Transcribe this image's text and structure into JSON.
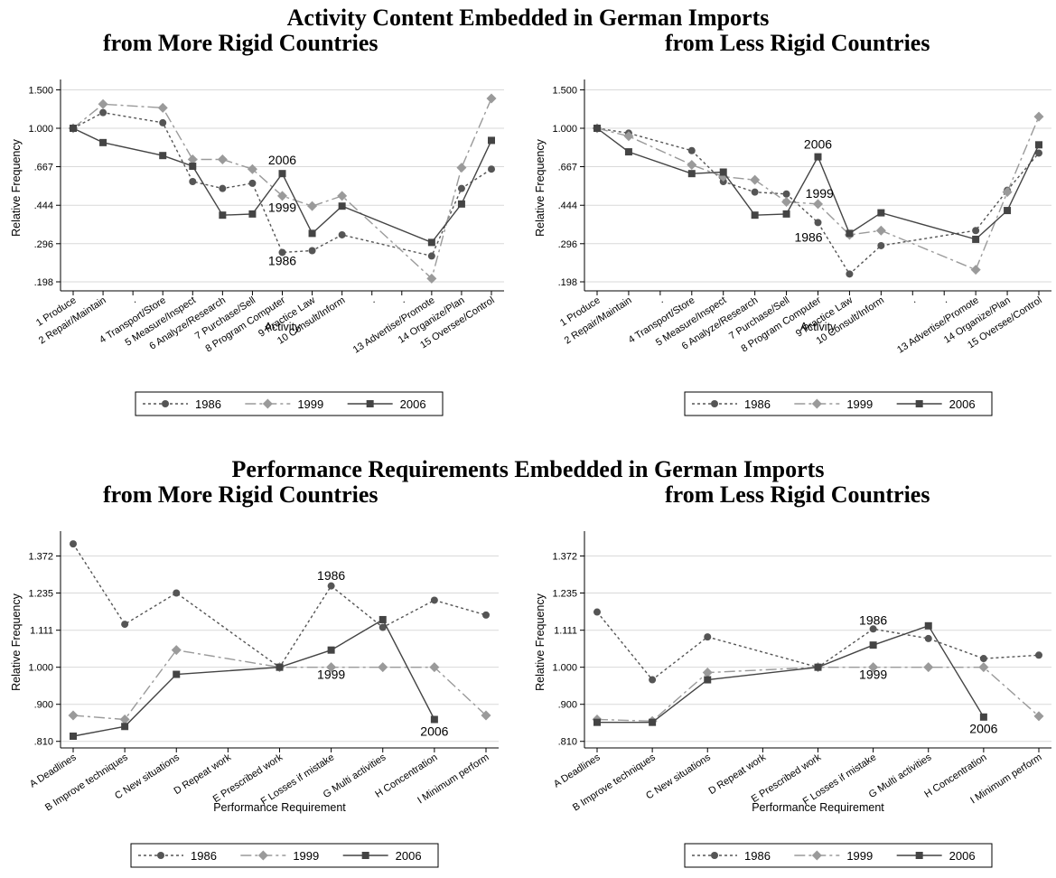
{
  "titles": {
    "top": "Activity Content Embedded in German Imports",
    "bottom": "Performance Requirements Embedded in German Imports",
    "sub_more": "from More Rigid Countries",
    "sub_less": "from Less Rigid Countries"
  },
  "colors": {
    "axis": "#000000",
    "grid": "#d9d9d9",
    "s1986": "#555555",
    "s1999": "#9a9a9a",
    "s2006": "#444444"
  },
  "chart_data": [
    {
      "type": "line",
      "ylabel": "Relative Frequency",
      "xlabel": "Activity",
      "y_scale": "log",
      "y_ticks": [
        0.198,
        0.296,
        0.444,
        0.667,
        1.0,
        1.5
      ],
      "y_tick_labels": [
        ".198",
        ".296",
        ".444",
        ".667",
        "1.000",
        "1.500"
      ],
      "ylim": [
        0.18,
        1.58
      ],
      "x": [
        1,
        2,
        3,
        4,
        5,
        6,
        7,
        8,
        9,
        10,
        11,
        12,
        13,
        14,
        15
      ],
      "x_tick_labels": [
        "1 Produce",
        "2 Repair/Maintain",
        ".",
        "4 Transport/Store",
        "5 Measure/Inspect",
        "6 Analyze/Research",
        "7 Purchase/Sell",
        "8 Program Computer",
        "9 Practice Law",
        "10 Consult/Inform",
        ".",
        ".",
        "13 Advertise/Promote",
        "14 Organize/Plan",
        "15 Oversee/Control"
      ],
      "legend": [
        "1986",
        "1999",
        "2006"
      ],
      "series": [
        {
          "name": "1986",
          "points": [
            [
              1,
              1.0
            ],
            [
              2,
              1.18
            ],
            [
              4,
              1.06
            ],
            [
              5,
              0.57
            ],
            [
              6,
              0.53
            ],
            [
              7,
              0.56
            ],
            [
              8,
              0.27
            ],
            [
              9,
              0.275
            ],
            [
              10,
              0.325
            ],
            [
              13,
              0.26
            ],
            [
              14,
              0.53
            ],
            [
              15,
              0.65
            ]
          ]
        },
        {
          "name": "1999",
          "points": [
            [
              1,
              1.0
            ],
            [
              2,
              1.29
            ],
            [
              4,
              1.24
            ],
            [
              5,
              0.72
            ],
            [
              6,
              0.72
            ],
            [
              7,
              0.65
            ],
            [
              8,
              0.49
            ],
            [
              9,
              0.44
            ],
            [
              10,
              0.49
            ],
            [
              13,
              0.205
            ],
            [
              14,
              0.66
            ],
            [
              15,
              1.37
            ]
          ]
        },
        {
          "name": "2006",
          "points": [
            [
              1,
              1.0
            ],
            [
              2,
              0.86
            ],
            [
              4,
              0.75
            ],
            [
              5,
              0.67
            ],
            [
              6,
              0.4
            ],
            [
              7,
              0.405
            ],
            [
              8,
              0.62
            ],
            [
              9,
              0.33
            ],
            [
              10,
              0.44
            ],
            [
              13,
              0.3
            ],
            [
              14,
              0.45
            ],
            [
              15,
              0.88
            ]
          ]
        }
      ],
      "annotations": [
        {
          "text": "2006",
          "x": 8,
          "y": 0.71
        },
        {
          "text": "1999",
          "x": 8,
          "y": 0.43
        },
        {
          "text": "1986",
          "x": 8,
          "y": 0.245
        }
      ]
    },
    {
      "type": "line",
      "ylabel": "Relative Frequency",
      "xlabel": "Activity",
      "y_scale": "log",
      "y_ticks": [
        0.198,
        0.296,
        0.444,
        0.667,
        1.0,
        1.5
      ],
      "y_tick_labels": [
        ".198",
        ".296",
        ".444",
        ".667",
        "1.000",
        "1.500"
      ],
      "ylim": [
        0.18,
        1.58
      ],
      "x": [
        1,
        2,
        3,
        4,
        5,
        6,
        7,
        8,
        9,
        10,
        11,
        12,
        13,
        14,
        15
      ],
      "x_tick_labels": [
        "1 Produce",
        "2 Repair/Maintain",
        ".",
        "4 Transport/Store",
        "5 Measure/Inspect",
        "6 Analyze/Research",
        "7 Purchase/Sell",
        "8 Program Computer",
        "9 Practice Law",
        "10 Consult/Inform",
        ".",
        ".",
        "13 Advertise/Promote",
        "14 Organize/Plan",
        "15 Oversee/Control"
      ],
      "legend": [
        "1986",
        "1999",
        "2006"
      ],
      "series": [
        {
          "name": "1986",
          "points": [
            [
              1,
              1.0
            ],
            [
              2,
              0.95
            ],
            [
              4,
              0.79
            ],
            [
              5,
              0.57
            ],
            [
              6,
              0.51
            ],
            [
              7,
              0.5
            ],
            [
              8,
              0.37
            ],
            [
              9,
              0.215
            ],
            [
              10,
              0.29
            ],
            [
              13,
              0.34
            ],
            [
              14,
              0.52
            ],
            [
              15,
              0.77
            ]
          ]
        },
        {
          "name": "1999",
          "points": [
            [
              1,
              1.0
            ],
            [
              2,
              0.92
            ],
            [
              4,
              0.68
            ],
            [
              5,
              0.6
            ],
            [
              6,
              0.58
            ],
            [
              7,
              0.46
            ],
            [
              8,
              0.45
            ],
            [
              9,
              0.325
            ],
            [
              10,
              0.34
            ],
            [
              13,
              0.225
            ],
            [
              14,
              0.51
            ],
            [
              15,
              1.13
            ]
          ]
        },
        {
          "name": "2006",
          "points": [
            [
              1,
              1.0
            ],
            [
              2,
              0.78
            ],
            [
              4,
              0.62
            ],
            [
              5,
              0.63
            ],
            [
              6,
              0.4
            ],
            [
              7,
              0.405
            ],
            [
              8,
              0.74
            ],
            [
              9,
              0.33
            ],
            [
              10,
              0.41
            ],
            [
              13,
              0.31
            ],
            [
              14,
              0.42
            ],
            [
              15,
              0.84
            ]
          ]
        }
      ],
      "annotations": [
        {
          "text": "2006",
          "x": 8,
          "y": 0.84
        },
        {
          "text": "1999",
          "x": 8.05,
          "y": 0.5
        },
        {
          "text": "1986",
          "x": 7.7,
          "y": 0.315
        }
      ]
    },
    {
      "type": "line",
      "ylabel": "Relative Frequency",
      "xlabel": "Performance Requirement",
      "y_scale": "log",
      "y_ticks": [
        0.81,
        0.9,
        1.0,
        1.111,
        1.235,
        1.372
      ],
      "y_tick_labels": [
        ".810",
        ".900",
        "1.000",
        "1.111",
        "1.235",
        "1.372"
      ],
      "ylim": [
        0.795,
        1.45
      ],
      "x": [
        1,
        2,
        3,
        4,
        5,
        6,
        7,
        8,
        9
      ],
      "x_tick_labels": [
        "A Deadlines",
        "B Improve techniques",
        "C New situations",
        "D Repeat work",
        "E Prescribed work",
        "F Losses if mistake",
        "G Multi activities",
        "H Concentration",
        "I Minimum perform"
      ],
      "legend": [
        "1986",
        "1999",
        "2006"
      ],
      "series": [
        {
          "name": "1986",
          "points": [
            [
              1,
              1.42
            ],
            [
              2,
              1.13
            ],
            [
              3,
              1.235
            ],
            [
              5,
              1.0
            ],
            [
              6,
              1.26
            ],
            [
              7,
              1.12
            ],
            [
              8,
              1.21
            ],
            [
              9,
              1.16
            ]
          ]
        },
        {
          "name": "1999",
          "points": [
            [
              1,
              0.872
            ],
            [
              2,
              0.862
            ],
            [
              3,
              1.05
            ],
            [
              5,
              1.0
            ],
            [
              6,
              1.0
            ],
            [
              7,
              1.0
            ],
            [
              8,
              1.0
            ],
            [
              9,
              0.872
            ]
          ]
        },
        {
          "name": "2006",
          "points": [
            [
              1,
              0.822
            ],
            [
              2,
              0.845
            ],
            [
              3,
              0.98
            ],
            [
              5,
              1.0
            ],
            [
              6,
              1.05
            ],
            [
              7,
              1.145
            ],
            [
              8,
              0.862
            ]
          ]
        }
      ],
      "annotations": [
        {
          "text": "1986",
          "x": 6,
          "y": 1.295
        },
        {
          "text": "1999",
          "x": 6,
          "y": 0.977
        },
        {
          "text": "2006",
          "x": 8,
          "y": 0.832
        }
      ]
    },
    {
      "type": "line",
      "ylabel": "Relative Frequency",
      "xlabel": "Performance Requirement",
      "y_scale": "log",
      "y_ticks": [
        0.81,
        0.9,
        1.0,
        1.111,
        1.235,
        1.372
      ],
      "y_tick_labels": [
        ".810",
        ".900",
        "1.000",
        "1.111",
        "1.235",
        "1.372"
      ],
      "ylim": [
        0.795,
        1.45
      ],
      "x": [
        1,
        2,
        3,
        4,
        5,
        6,
        7,
        8,
        9
      ],
      "x_tick_labels": [
        "A Deadlines",
        "B Improve techniques",
        "C New situations",
        "D Repeat work",
        "E Prescribed work",
        "F Losses if mistake",
        "G Multi activities",
        "H Concentration",
        "I Minimum perform"
      ],
      "legend": [
        "1986",
        "1999",
        "2006"
      ],
      "series": [
        {
          "name": "1986",
          "points": [
            [
              1,
              1.17
            ],
            [
              2,
              0.965
            ],
            [
              3,
              1.09
            ],
            [
              5,
              1.0
            ],
            [
              6,
              1.115
            ],
            [
              7,
              1.085
            ],
            [
              8,
              1.025
            ],
            [
              9,
              1.035
            ]
          ]
        },
        {
          "name": "1999",
          "points": [
            [
              1,
              0.862
            ],
            [
              2,
              0.858
            ],
            [
              3,
              0.985
            ],
            [
              5,
              1.0
            ],
            [
              6,
              1.0
            ],
            [
              7,
              1.0
            ],
            [
              8,
              1.0
            ],
            [
              9,
              0.87
            ]
          ]
        },
        {
          "name": "2006",
          "points": [
            [
              1,
              0.855
            ],
            [
              2,
              0.855
            ],
            [
              3,
              0.965
            ],
            [
              5,
              1.0
            ],
            [
              6,
              1.065
            ],
            [
              7,
              1.125
            ],
            [
              8,
              0.868
            ]
          ]
        }
      ],
      "annotations": [
        {
          "text": "1986",
          "x": 6,
          "y": 1.14
        },
        {
          "text": "1999",
          "x": 6,
          "y": 0.977
        },
        {
          "text": "2006",
          "x": 8,
          "y": 0.838
        }
      ]
    }
  ]
}
